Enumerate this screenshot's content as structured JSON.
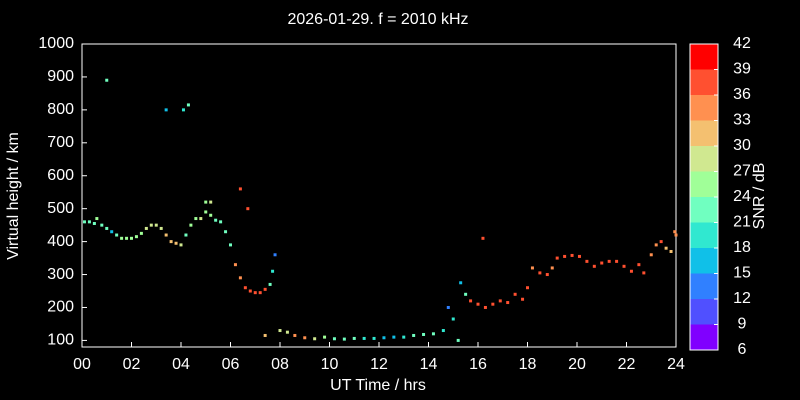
{
  "chart_data": {
    "type": "scatter",
    "title": "2026-01-29. f = 2010 kHz",
    "xlabel": "UT Time / hrs",
    "ylabel": "Virtual height / km",
    "xlim": [
      0,
      24
    ],
    "xticks": [
      {
        "value": 0,
        "label": "00"
      },
      {
        "value": 2,
        "label": "02"
      },
      {
        "value": 4,
        "label": "04"
      },
      {
        "value": 6,
        "label": "06"
      },
      {
        "value": 8,
        "label": "08"
      },
      10,
      12,
      14,
      16,
      18,
      20,
      22,
      24
    ],
    "ylim": [
      80,
      1000
    ],
    "yticks": [
      100,
      200,
      300,
      400,
      500,
      600,
      700,
      800,
      900,
      1000
    ],
    "colorbar": {
      "label": "SNR / dB",
      "ticks": [
        6,
        9,
        12,
        15,
        18,
        21,
        24,
        27,
        30,
        33,
        36,
        39,
        42
      ],
      "colors": [
        "#8000ff",
        "#5050ff",
        "#3080ff",
        "#10c0e8",
        "#30e8d0",
        "#70ffc0",
        "#a0ff98",
        "#d0e890",
        "#f4c070",
        "#ff9050",
        "#ff5030",
        "#ff0000"
      ]
    },
    "x": [
      0.1,
      0.3,
      0.5,
      0.6,
      0.8,
      1.0,
      1.2,
      1.4,
      1.6,
      1.8,
      2.0,
      2.2,
      2.4,
      2.6,
      2.8,
      3.0,
      3.2,
      3.4,
      3.6,
      3.8,
      4.0,
      4.2,
      4.4,
      4.6,
      4.8,
      5.0,
      5.2,
      5.4,
      5.6,
      5.8,
      6.0,
      6.2,
      6.4,
      6.6,
      6.8,
      7.0,
      7.2,
      7.4,
      7.6,
      7.7,
      7.8,
      1.0,
      3.4,
      4.1,
      4.3,
      6.4,
      6.7,
      5.0,
      5.2,
      7.4,
      8.0,
      8.3,
      8.6,
      9.0,
      9.4,
      9.8,
      10.2,
      10.6,
      11.0,
      11.4,
      11.8,
      12.2,
      12.6,
      13.0,
      13.4,
      13.8,
      14.2,
      14.6,
      14.8,
      15.0,
      15.2,
      15.3,
      15.5,
      15.7,
      16.0,
      16.2,
      16.3,
      16.6,
      16.9,
      17.2,
      17.5,
      17.8,
      18.0,
      18.2,
      18.5,
      18.8,
      19.0,
      19.2,
      19.5,
      19.8,
      20.1,
      20.4,
      20.7,
      21.0,
      21.3,
      21.6,
      21.9,
      22.2,
      22.5,
      22.7,
      23.0,
      23.2,
      23.4,
      23.6,
      23.8,
      23.95,
      24.0
    ],
    "series": [
      {
        "name": "SNR / dB",
        "values": [
          460,
          460,
          455,
          470,
          450,
          440,
          430,
          420,
          410,
          410,
          410,
          415,
          425,
          440,
          450,
          450,
          440,
          420,
          400,
          395,
          390,
          420,
          450,
          470,
          470,
          490,
          480,
          465,
          460,
          430,
          390,
          330,
          290,
          260,
          250,
          245,
          245,
          255,
          270,
          310,
          360,
          890,
          800,
          800,
          815,
          560,
          500,
          520,
          520,
          115,
          130,
          125,
          115,
          108,
          105,
          110,
          105,
          104,
          106,
          106,
          106,
          108,
          110,
          110,
          115,
          118,
          120,
          130,
          200,
          165,
          100,
          275,
          240,
          220,
          210,
          410,
          200,
          210,
          220,
          215,
          240,
          225,
          260,
          320,
          305,
          300,
          320,
          350,
          355,
          358,
          355,
          340,
          325,
          335,
          340,
          340,
          325,
          310,
          330,
          305,
          360,
          390,
          400,
          380,
          370,
          430,
          420
        ],
        "snr": [
          22,
          22,
          22,
          24,
          22,
          21,
          15,
          22,
          24,
          24,
          24,
          24,
          25,
          27,
          27,
          27,
          28,
          30,
          30,
          30,
          28,
          21,
          24,
          24,
          27,
          24,
          24,
          21,
          21,
          22,
          22,
          33,
          33,
          36,
          36,
          36,
          36,
          36,
          21,
          18,
          12,
          22,
          15,
          20,
          22,
          36,
          38,
          24,
          27,
          30,
          27,
          27,
          33,
          33,
          27,
          24,
          21,
          21,
          21,
          18,
          18,
          15,
          15,
          18,
          21,
          21,
          21,
          18,
          12,
          18,
          21,
          15,
          21,
          36,
          37,
          37,
          37,
          37,
          36,
          37,
          37,
          37,
          36,
          33,
          36,
          36,
          34,
          37,
          37,
          37,
          37,
          37,
          37,
          37,
          36,
          37,
          37,
          37,
          36,
          36,
          35,
          35,
          36,
          30,
          30,
          33,
          34
        ]
      }
    ]
  }
}
